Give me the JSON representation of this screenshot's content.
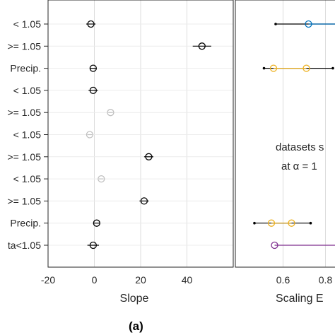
{
  "chart_data": [
    {
      "type": "scatter",
      "panel": "left",
      "xlabel": "Slope",
      "xlim": [
        -20,
        60
      ],
      "xticks": [
        -20,
        0,
        20,
        40
      ],
      "grid": true,
      "row_labels": [
        "< 1.05",
        ">= 1.05",
        "Precip.",
        "< 1.05",
        ">= 1.05",
        "< 1.05",
        ">= 1.05",
        "< 1.05",
        ">= 1.05",
        "Precip.",
        "ta<1.05"
      ],
      "points": [
        {
          "value": -1.5,
          "low": -3.5,
          "high": 0.5,
          "color": "#000000"
        },
        {
          "value": 46.5,
          "low": 42.5,
          "high": 50.5,
          "color": "#000000"
        },
        {
          "value": -0.5,
          "low": -2,
          "high": 1,
          "color": "#000000"
        },
        {
          "value": -0.5,
          "low": -2.5,
          "high": 1.5,
          "color": "#000000"
        },
        {
          "value": 7,
          "low": 6,
          "high": 8,
          "color": "#c0c0c0"
        },
        {
          "value": -2,
          "low": -3,
          "high": -1,
          "color": "#c0c0c0"
        },
        {
          "value": 23.5,
          "low": 21.5,
          "high": 25.5,
          "color": "#000000"
        },
        {
          "value": 3,
          "low": 2,
          "high": 4,
          "color": "#c0c0c0"
        },
        {
          "value": 21.5,
          "low": 19.5,
          "high": 23.5,
          "color": "#000000"
        },
        {
          "value": 1,
          "low": -0.5,
          "high": 2.5,
          "color": "#000000"
        },
        {
          "value": -0.5,
          "low": -3,
          "high": 2,
          "color": "#000000"
        }
      ]
    },
    {
      "type": "scatter",
      "panel": "right",
      "xlabel": "Scaling E",
      "xlim": [
        0.375,
        0.875
      ],
      "xticks": [
        0.6,
        0.8
      ],
      "xtick_labels": [
        "0.6",
        "0.8"
      ],
      "grid": true,
      "annotation_lines": [
        "datasets s",
        "at α = 1"
      ],
      "rows": [
        {
          "row": 0,
          "color": "#0072bd",
          "points": [
            0.72
          ],
          "bar_low": 0.565,
          "bar_high": 0.875
        },
        {
          "row": 2,
          "color": "#edb120",
          "points": [
            0.555,
            0.71
          ],
          "bar_low": 0.51,
          "bar_high": 0.835
        },
        {
          "row": 9,
          "color": "#edb120",
          "points": [
            0.545,
            0.64
          ],
          "bar_low": 0.465,
          "bar_high": 0.73
        },
        {
          "row": 10,
          "color": "#7e2f8e",
          "points": [
            0.56
          ],
          "bar_low": 0.56,
          "bar_high": 0.875
        }
      ]
    }
  ],
  "figure_label": "(a)"
}
